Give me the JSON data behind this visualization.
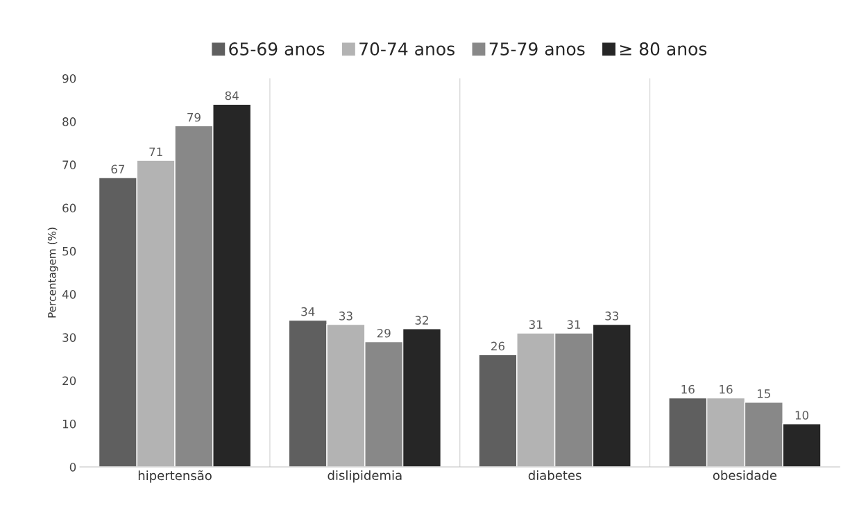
{
  "chart_data": {
    "type": "bar",
    "ylabel": "Percentagem (%)",
    "categories": [
      "hipertensão",
      "dislipidemia",
      "diabetes",
      "obesidade"
    ],
    "series": [
      {
        "name": "65-69 anos",
        "color": "#5f5f5f",
        "values": [
          67,
          34,
          26,
          16
        ]
      },
      {
        "name": "70-74 anos",
        "color": "#b3b3b3",
        "values": [
          71,
          33,
          31,
          16
        ]
      },
      {
        "name": "75-79 anos",
        "color": "#888888",
        "values": [
          79,
          29,
          31,
          15
        ]
      },
      {
        "name": "≥ 80 anos",
        "color": "#262626",
        "values": [
          84,
          32,
          33,
          10
        ]
      }
    ],
    "ylim": [
      0,
      90
    ],
    "yticks": [
      0,
      10,
      20,
      30,
      40,
      50,
      60,
      70,
      80,
      90
    ],
    "data_labels": true,
    "grid": "x",
    "legend": "top"
  }
}
